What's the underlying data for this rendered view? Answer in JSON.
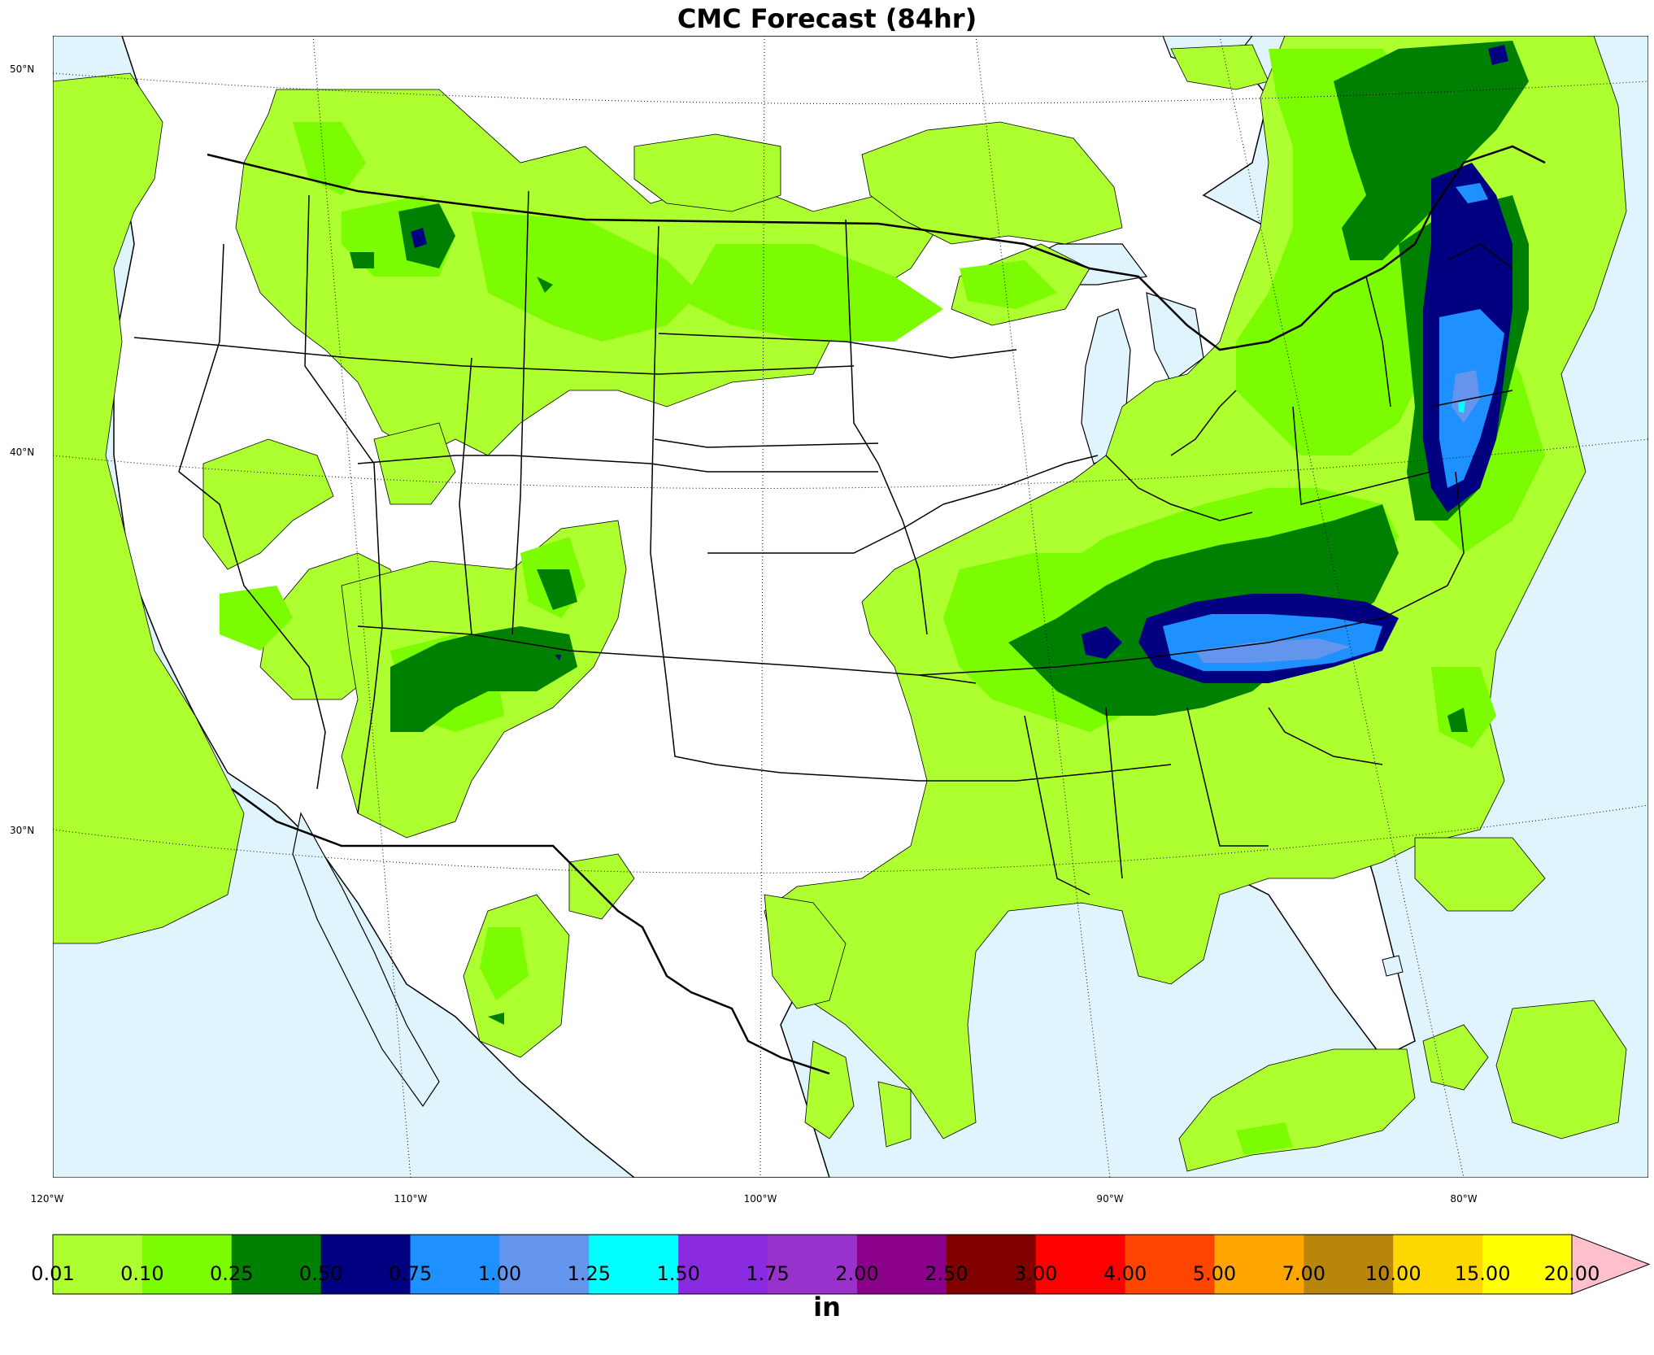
{
  "title": "CMC Forecast (84hr)",
  "map": {
    "region": "Continental United States",
    "background_colors": {
      "land": "#ffffff",
      "water": "#dff4fd"
    },
    "lon_labels": [
      "120°W",
      "110°W",
      "100°W",
      "90°W",
      "80°W"
    ],
    "lat_labels": [
      "50°N",
      "40°N",
      "30°N"
    ]
  },
  "colorbar": {
    "ticks": [
      "0.01",
      "0.10",
      "0.25",
      "0.50",
      "0.75",
      "1.00",
      "1.25",
      "1.50",
      "1.75",
      "2.00",
      "2.50",
      "3.00",
      "4.00",
      "5.00",
      "7.00",
      "10.00",
      "15.00",
      "20.00"
    ],
    "colors": [
      "#adff2f",
      "#7cfc00",
      "#008000",
      "#000080",
      "#1e90ff",
      "#6495ed",
      "#00ffff",
      "#8a2be2",
      "#9932cc",
      "#8b008b",
      "#800000",
      "#ff0000",
      "#ff4500",
      "#ffa500",
      "#b8860b",
      "#ffd700",
      "#ffff00"
    ],
    "extend_color": "#ffc0cb",
    "unit": "in"
  }
}
